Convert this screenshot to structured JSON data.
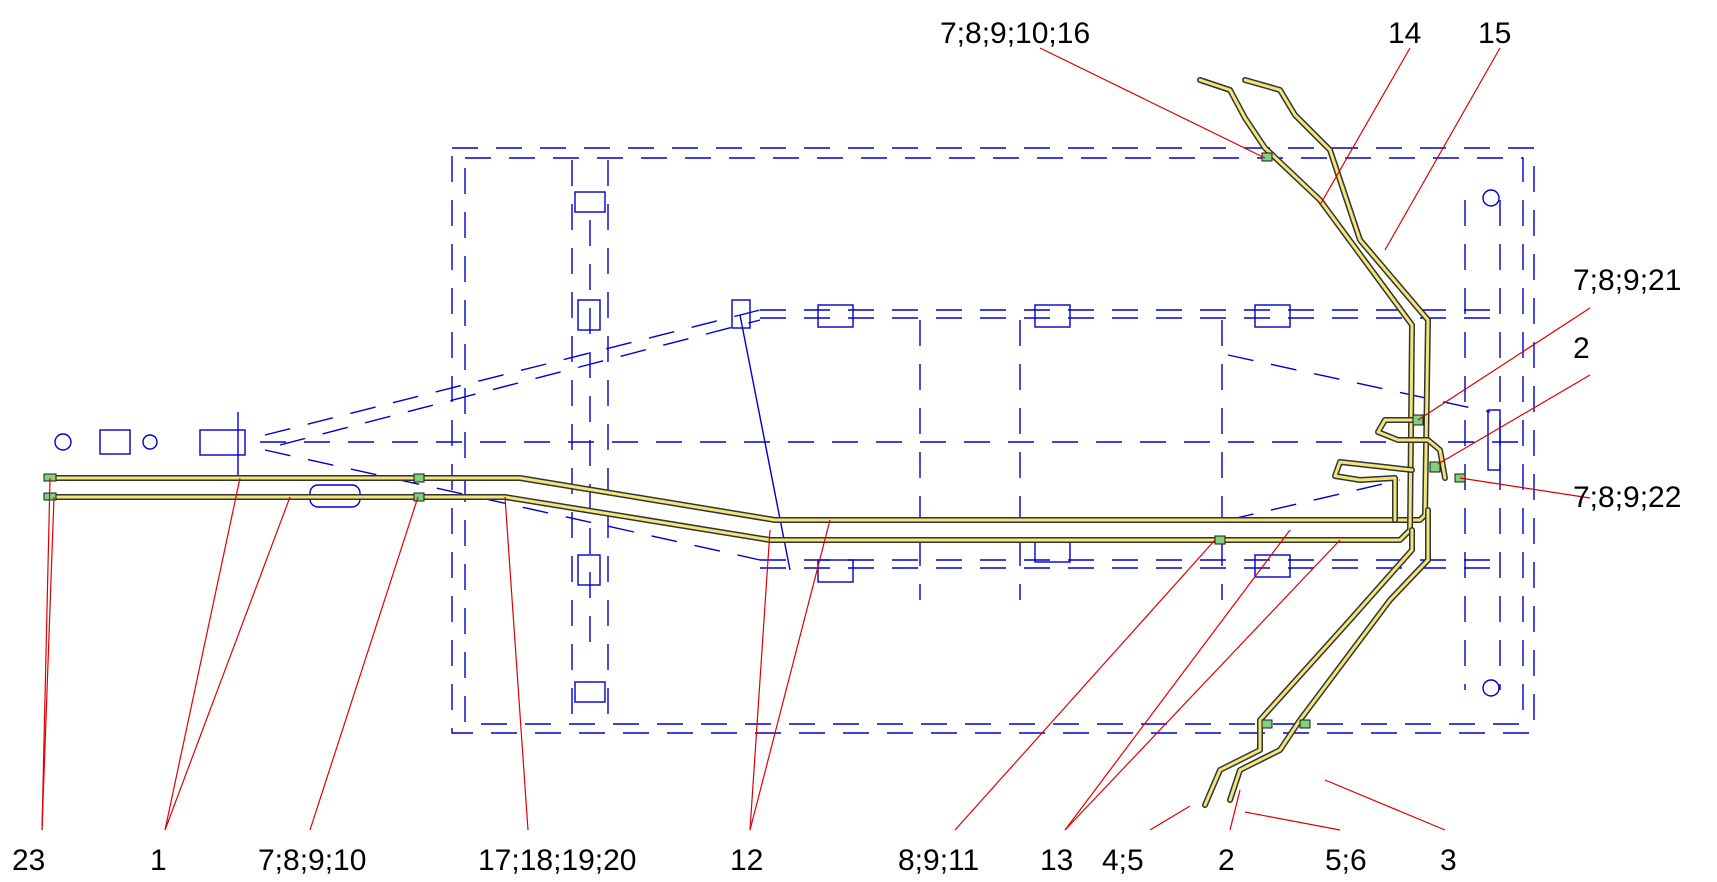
{
  "colors": {
    "frame": "#0000cc",
    "pipe_outline": "#333333",
    "pipe_fill": "#f2e67a",
    "leader": "#e00000",
    "fitting": "#7fd07f"
  },
  "callouts": {
    "c_7_8_9_10_16": "7;8;9;10;16",
    "c_14": "14",
    "c_15": "15",
    "c_7_8_9_21": "7;8;9;21",
    "c_2_right": "2",
    "c_7_8_9_22": "7;8;9;22",
    "c_23": "23",
    "c_1": "1",
    "c_7_8_9_10": "7;8;9;10",
    "c_17_18_19_20": "17;18;19;20",
    "c_12": "12",
    "c_8_9_11": "8;9;11",
    "c_13": "13",
    "c_4_5": "4;5",
    "c_2_bottom": "2",
    "c_5_6": "5;6",
    "c_3": "3"
  }
}
